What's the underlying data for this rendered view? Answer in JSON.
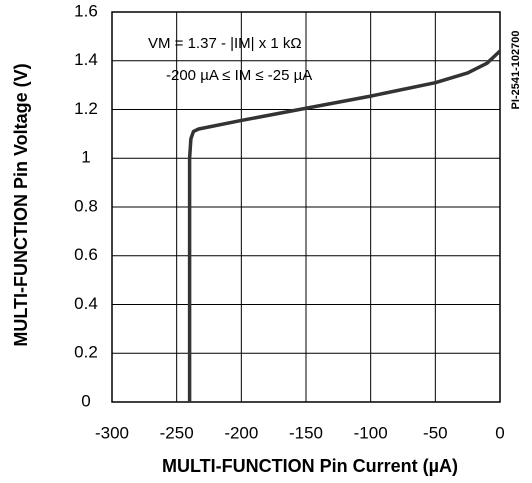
{
  "chart_data": {
    "type": "line",
    "xlabel": "MULTI-FUNCTION Pin Current (µA)",
    "ylabel": "MULTI-FUNCTION Pin Voltage (V)",
    "annotations": [
      "VM = 1.37 - |IM| x 1 kΩ",
      "-200 µA ≤ IM ≤ -25 µA",
      "PI-2541-102700"
    ],
    "x": [
      -240,
      -240,
      -239,
      -237,
      -233,
      -200,
      -150,
      -100,
      -50,
      -25,
      -10,
      0
    ],
    "series": [
      {
        "color": "#333333",
        "values": [
          0,
          1.0,
          1.08,
          1.11,
          1.12,
          1.155,
          1.205,
          1.255,
          1.31,
          1.35,
          1.39,
          1.44
        ]
      }
    ],
    "xlim": [
      -300,
      0
    ],
    "xticks": [
      -300,
      -250,
      -200,
      -150,
      -100,
      -50,
      0
    ],
    "ylim": [
      0,
      1.6
    ],
    "yticks": [
      0,
      0.2,
      0.4,
      0.6,
      0.8,
      1.0,
      1.2,
      1.4,
      1.6
    ],
    "grid": true
  }
}
